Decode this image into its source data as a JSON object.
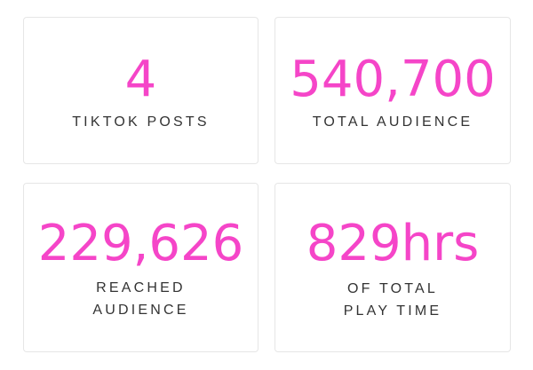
{
  "accent_color": "#f545c8",
  "stats": [
    {
      "value": "4",
      "label_lines": [
        "TIKTOK POSTS"
      ]
    },
    {
      "value": "540,700",
      "label_lines": [
        "TOTAL AUDIENCE"
      ]
    },
    {
      "value": "229,626",
      "label_lines": [
        "REACHED",
        "AUDIENCE"
      ]
    },
    {
      "value": "829hrs",
      "label_lines": [
        "OF TOTAL",
        "PLAY TIME"
      ]
    }
  ]
}
